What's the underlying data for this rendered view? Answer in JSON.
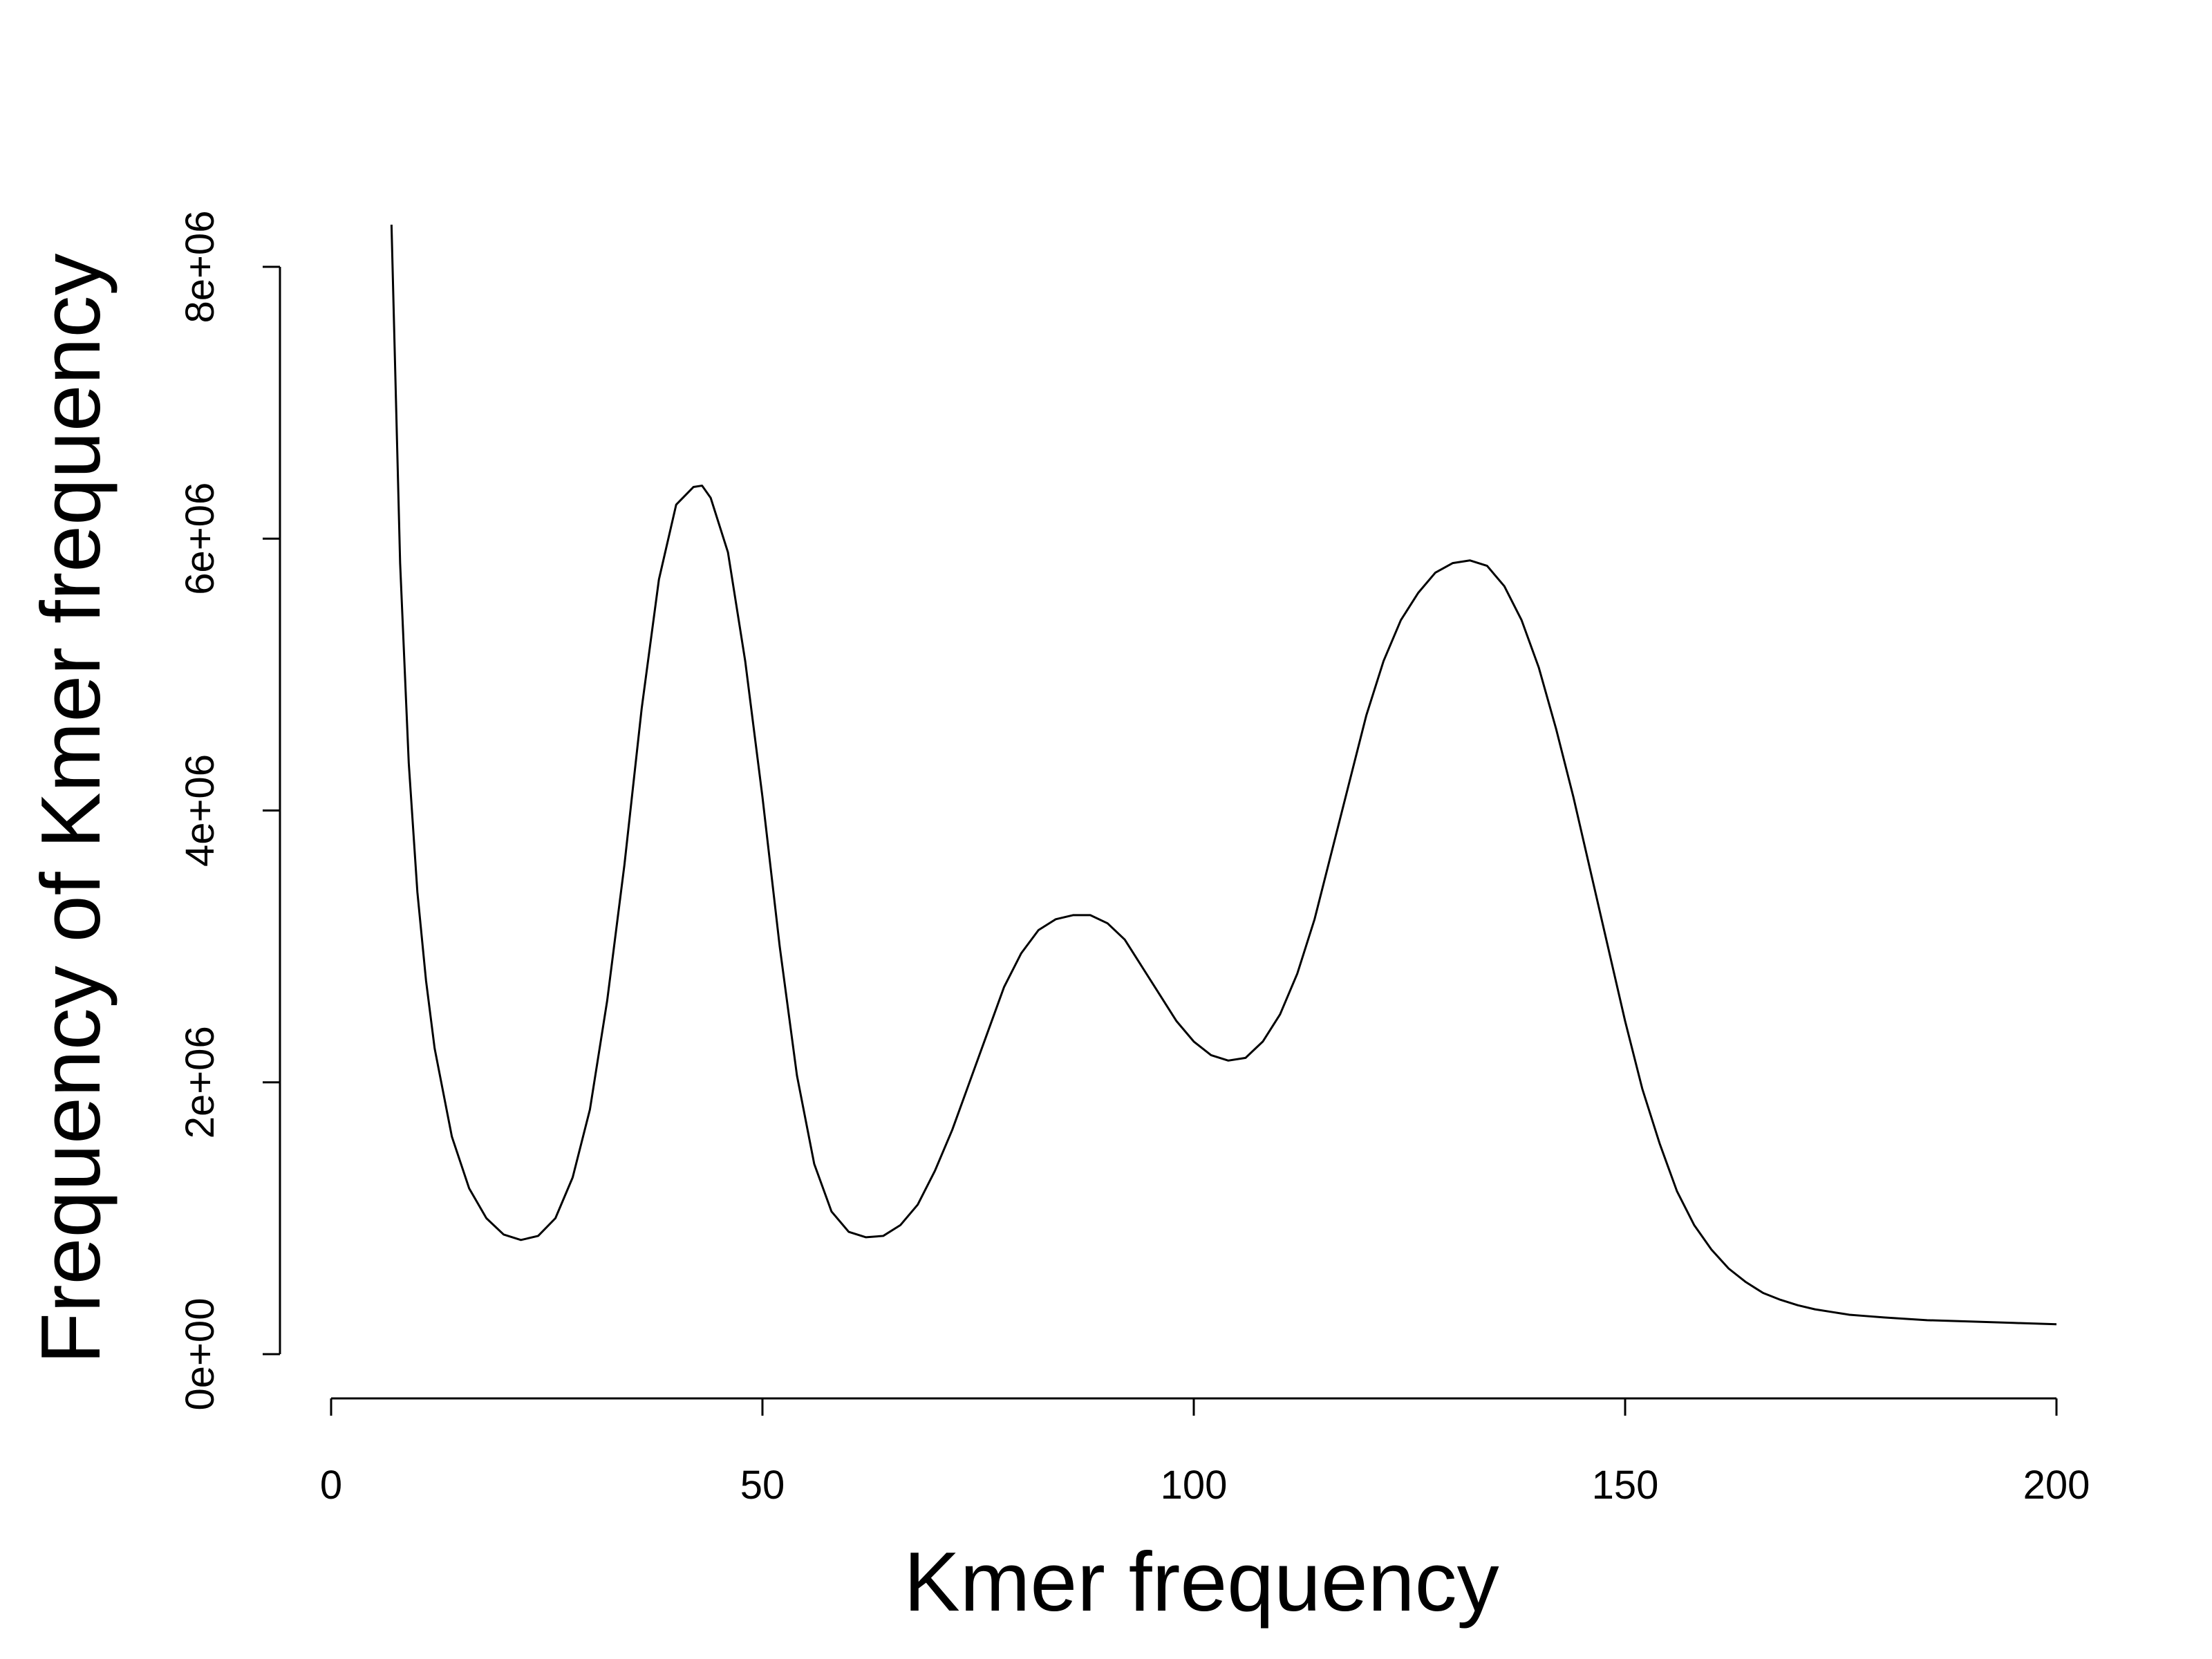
{
  "chart_data": {
    "type": "line",
    "x_label": "Kmer frequency",
    "y_label": "Frequency of Kmer frequency",
    "x": [
      7,
      8,
      9,
      10,
      11,
      12,
      14,
      16,
      18,
      20,
      22,
      24,
      26,
      28,
      30,
      32,
      34,
      36,
      38,
      40,
      42,
      43,
      44,
      46,
      48,
      50,
      52,
      54,
      56,
      58,
      60,
      62,
      64,
      66,
      68,
      70,
      72,
      74,
      76,
      78,
      80,
      82,
      84,
      86,
      88,
      90,
      92,
      94,
      96,
      98,
      100,
      102,
      104,
      106,
      108,
      110,
      112,
      114,
      116,
      118,
      120,
      122,
      124,
      126,
      128,
      130,
      132,
      134,
      136,
      138,
      140,
      142,
      144,
      146,
      148,
      150,
      152,
      154,
      156,
      158,
      160,
      162,
      164,
      166,
      168,
      170,
      172,
      174,
      176,
      178,
      180,
      185,
      190,
      195,
      200
    ],
    "values": [
      8310000,
      5820000,
      4350000,
      3400000,
      2750000,
      2250000,
      1600000,
      1220000,
      1000000,
      880000,
      840000,
      870000,
      1000000,
      1300000,
      1800000,
      2600000,
      3600000,
      4750000,
      5700000,
      6250000,
      6380000,
      6390000,
      6300000,
      5900000,
      5100000,
      4100000,
      3000000,
      2050000,
      1400000,
      1050000,
      900000,
      860000,
      870000,
      950000,
      1100000,
      1350000,
      1650000,
      2000000,
      2350000,
      2700000,
      2950000,
      3120000,
      3200000,
      3230000,
      3230000,
      3170000,
      3050000,
      2850000,
      2650000,
      2450000,
      2300000,
      2200000,
      2160000,
      2180000,
      2300000,
      2500000,
      2800000,
      3200000,
      3700000,
      4200000,
      4700000,
      5100000,
      5400000,
      5600000,
      5750000,
      5820000,
      5840000,
      5800000,
      5650000,
      5400000,
      5050000,
      4600000,
      4100000,
      3550000,
      3000000,
      2450000,
      1950000,
      1550000,
      1200000,
      950000,
      770000,
      630000,
      530000,
      450000,
      400000,
      360000,
      330000,
      310000,
      290000,
      280000,
      270000,
      250000,
      240000,
      230000,
      220000
    ],
    "color": "#000000",
    "xlim": [
      0,
      200
    ],
    "xticks": [
      0,
      50,
      100,
      150,
      200
    ],
    "ylim": [
      0,
      8000000
    ],
    "yticks": [
      {
        "value": 0,
        "label": "0e+00"
      },
      {
        "value": 2000000,
        "label": "2e+06"
      },
      {
        "value": 4000000,
        "label": "4e+06"
      },
      {
        "value": 6000000,
        "label": "6e+06"
      },
      {
        "value": 8000000,
        "label": "8e+06"
      }
    ]
  }
}
